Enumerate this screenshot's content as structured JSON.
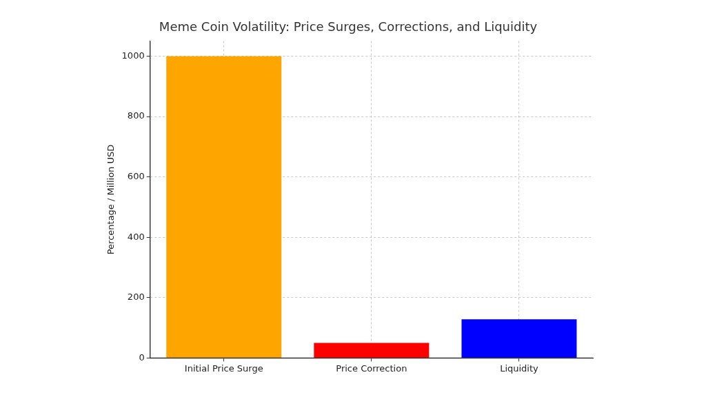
{
  "chart_data": {
    "type": "bar",
    "title": "Meme Coin Volatility: Price Surges, Corrections, and Liquidity",
    "y_label": "Percentage / Million USD",
    "categories": [
      "Initial Price Surge",
      "Price Correction",
      "Liquidity"
    ],
    "values": [
      1000,
      50,
      128
    ],
    "colors": [
      "#FFA500",
      "#FF0000",
      "#0000FF"
    ],
    "ylim": [
      0,
      1050
    ],
    "yticks": [
      0,
      200,
      400,
      600,
      800,
      1000
    ],
    "grid": true
  }
}
